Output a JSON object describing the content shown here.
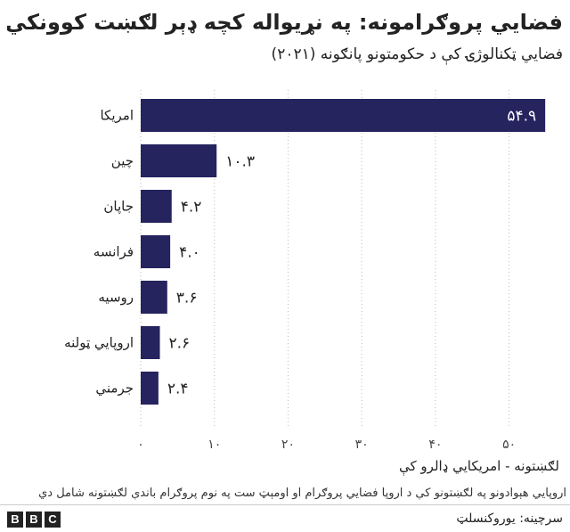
{
  "chart_data": {
    "type": "bar",
    "orientation": "horizontal",
    "title": "فضايي پروګرامونه: په نړيواله کچه ډېر لګښت کوونکي",
    "subtitle": "فضايي ټکنالوژۍ کې د حکومتونو پانګونه (۲۰۲۱)",
    "categories": [
      "امریکا",
      "چین",
      "جاپان",
      "فرانسه",
      "روسیه",
      "اروپایي ټولنه",
      "جرمني"
    ],
    "values": [
      54.9,
      10.3,
      4.2,
      4.0,
      3.6,
      2.6,
      2.4
    ],
    "value_labels": [
      "۵۴.۹",
      "۱۰.۳",
      "۴.۲",
      "۴.۰",
      "۳.۶",
      "۲.۶",
      "۲.۴"
    ],
    "xlim": [
      0,
      55
    ],
    "xticks": [
      0,
      10,
      20,
      30,
      40,
      50
    ],
    "xtick_labels": [
      "۰",
      "۱۰",
      "۲۰",
      "۳۰",
      "۴۰",
      "۵۰"
    ],
    "xlabel": "لګښتونه - امریکايي ډالرو کې",
    "grid": "x-dotted",
    "legend": "none",
    "bar_color": "#25245f"
  },
  "note": "اروپايي هېوادونو په لګښتونو کې د اروپا فضايي پروګرام او اومېټ ست په نوم پروګرام باندې لګښتونه شامل دي",
  "source": "سرچينه: یوروکنسلټ",
  "brand": [
    "B",
    "B",
    "C"
  ]
}
